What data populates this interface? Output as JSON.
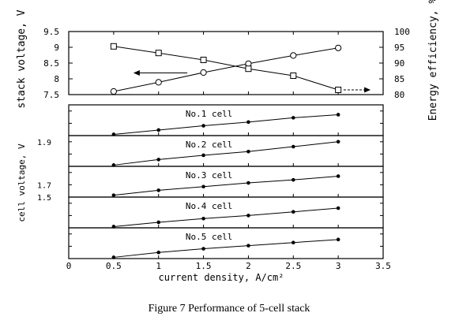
{
  "figure": {
    "caption": "Figure 7   Performance of 5-cell stack"
  },
  "chart_data": [
    {
      "type": "line",
      "name": "stack-panel",
      "x": [
        0.5,
        1.0,
        1.5,
        2.0,
        2.5,
        3.0
      ],
      "xlim": [
        0,
        3.5
      ],
      "ylabel": "stack voltage, V",
      "ylim": [
        7.5,
        9.5
      ],
      "yticks": [
        "7.5",
        "8",
        "8.5",
        "9",
        "9.5"
      ],
      "y2label": "Energy efficiency, %",
      "y2lim": [
        80,
        100
      ],
      "y2ticks": [
        "80",
        "85",
        "90",
        "95",
        "100"
      ],
      "series": [
        {
          "axis": "left",
          "marker": "circle",
          "values": [
            7.6,
            7.89,
            8.2,
            8.48,
            8.74,
            8.98
          ]
        },
        {
          "axis": "right",
          "marker": "square",
          "values": [
            95.3,
            93.2,
            91.0,
            88.2,
            86.0,
            81.5
          ]
        }
      ]
    },
    {
      "type": "line",
      "name": "cell-panels",
      "x": [
        0.5,
        1.0,
        1.5,
        2.0,
        2.5,
        3.0
      ],
      "xlim": [
        0,
        3.5
      ],
      "xticks": [
        "0",
        "0.5",
        "1",
        "1.5",
        "2",
        "2.5",
        "3",
        "3.5"
      ],
      "xlabel": "current density, A/cm²",
      "ylabel": "cell voltage, V",
      "ylim": [
        1.5,
        2.0
      ],
      "yticks": [
        "1.5",
        "1.7",
        "1.9"
      ],
      "panels": [
        {
          "label": "No.1 cell",
          "values": [
            1.52,
            1.59,
            1.66,
            1.72,
            1.79,
            1.84
          ]
        },
        {
          "label": "No.2 cell",
          "values": [
            1.52,
            1.61,
            1.68,
            1.74,
            1.82,
            1.9
          ]
        },
        {
          "label": "No.3 cell",
          "values": [
            1.53,
            1.61,
            1.67,
            1.73,
            1.78,
            1.84
          ]
        },
        {
          "label": "No.4 cell",
          "values": [
            1.52,
            1.59,
            1.65,
            1.7,
            1.76,
            1.82
          ]
        },
        {
          "label": "No.5 cell",
          "values": [
            1.52,
            1.6,
            1.66,
            1.71,
            1.76,
            1.81
          ]
        }
      ]
    }
  ]
}
